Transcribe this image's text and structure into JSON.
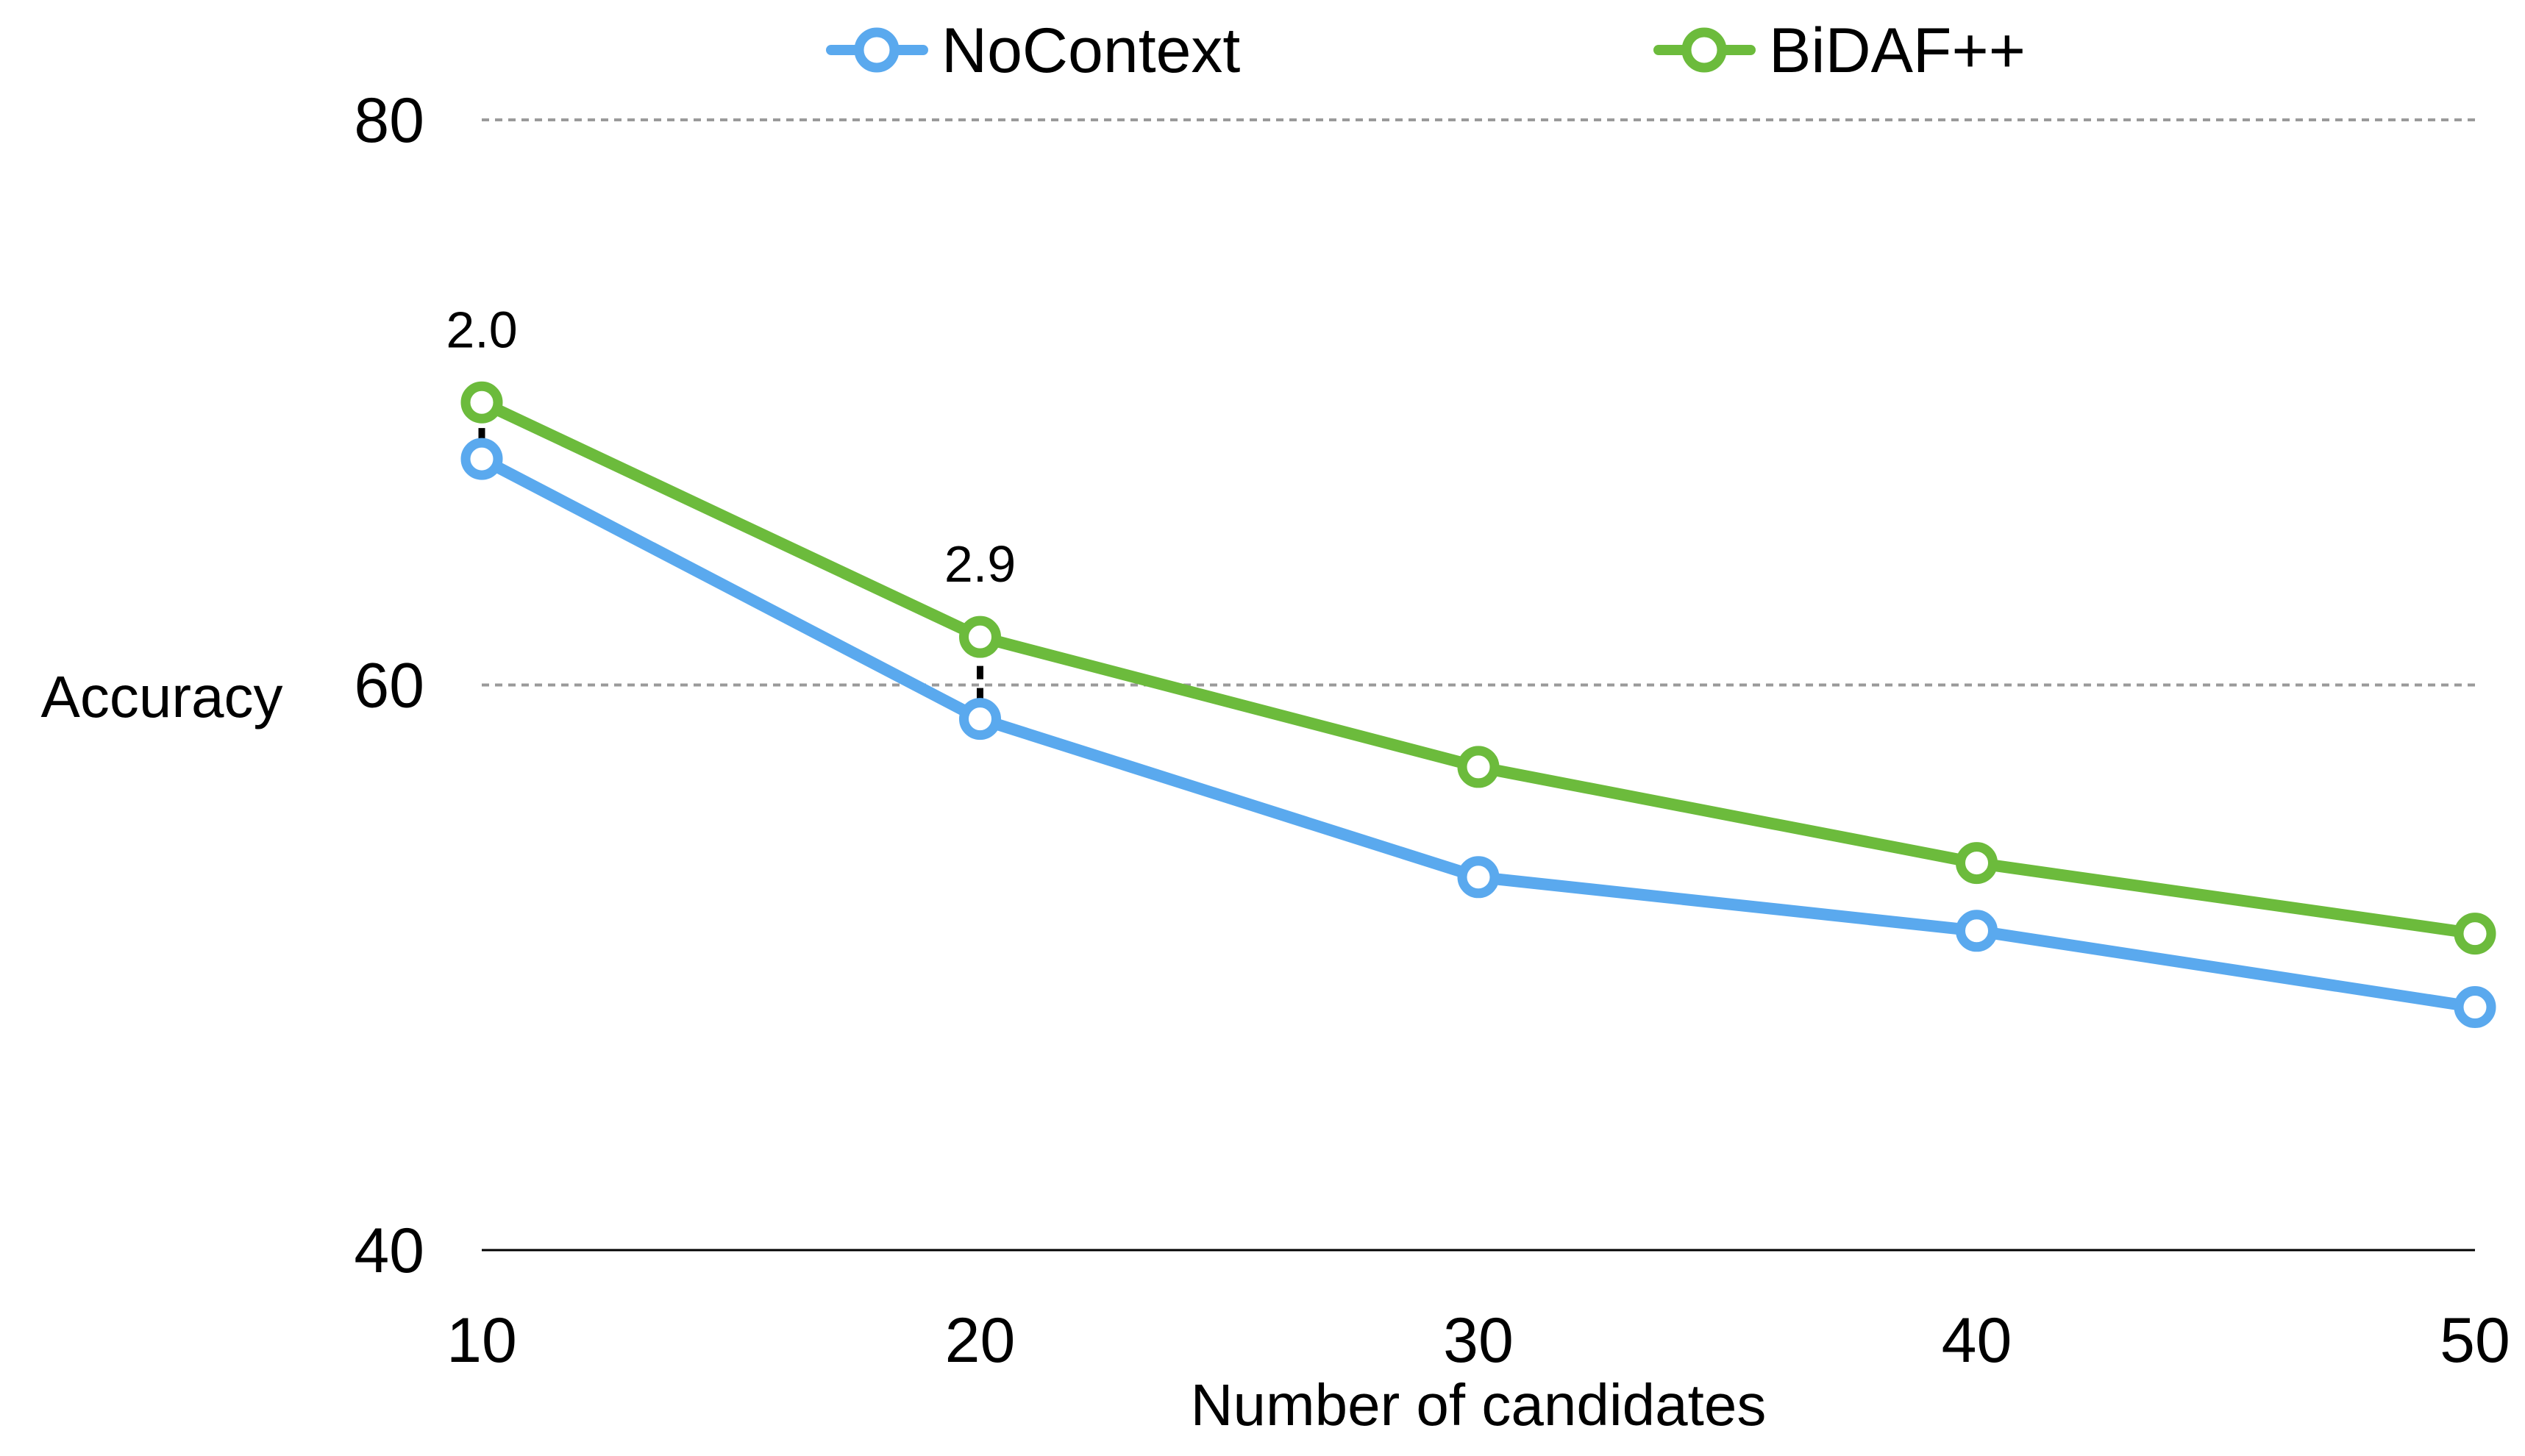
{
  "chart_data": {
    "type": "line",
    "xlabel": "Number of candidates",
    "ylabel": "Accuracy",
    "x": [
      10,
      20,
      30,
      40,
      50
    ],
    "xlim": [
      10,
      50
    ],
    "ylim": [
      40,
      80
    ],
    "yticks": [
      40,
      60,
      80
    ],
    "grid": true,
    "legend_position": "top",
    "series": [
      {
        "name": "NoContext",
        "color": "#5aa9ee",
        "values": [
          68.0,
          58.8,
          53.2,
          51.3,
          48.6
        ]
      },
      {
        "name": "BiDAF++",
        "color": "#6cbb3c",
        "values": [
          70.0,
          61.7,
          57.1,
          53.7,
          51.2
        ]
      }
    ],
    "annotations": [
      {
        "text": "2.0",
        "x": 10,
        "from_y": 68.0,
        "to_y": 70.0
      },
      {
        "text": "2.9",
        "x": 20,
        "from_y": 58.8,
        "to_y": 61.7
      }
    ]
  }
}
